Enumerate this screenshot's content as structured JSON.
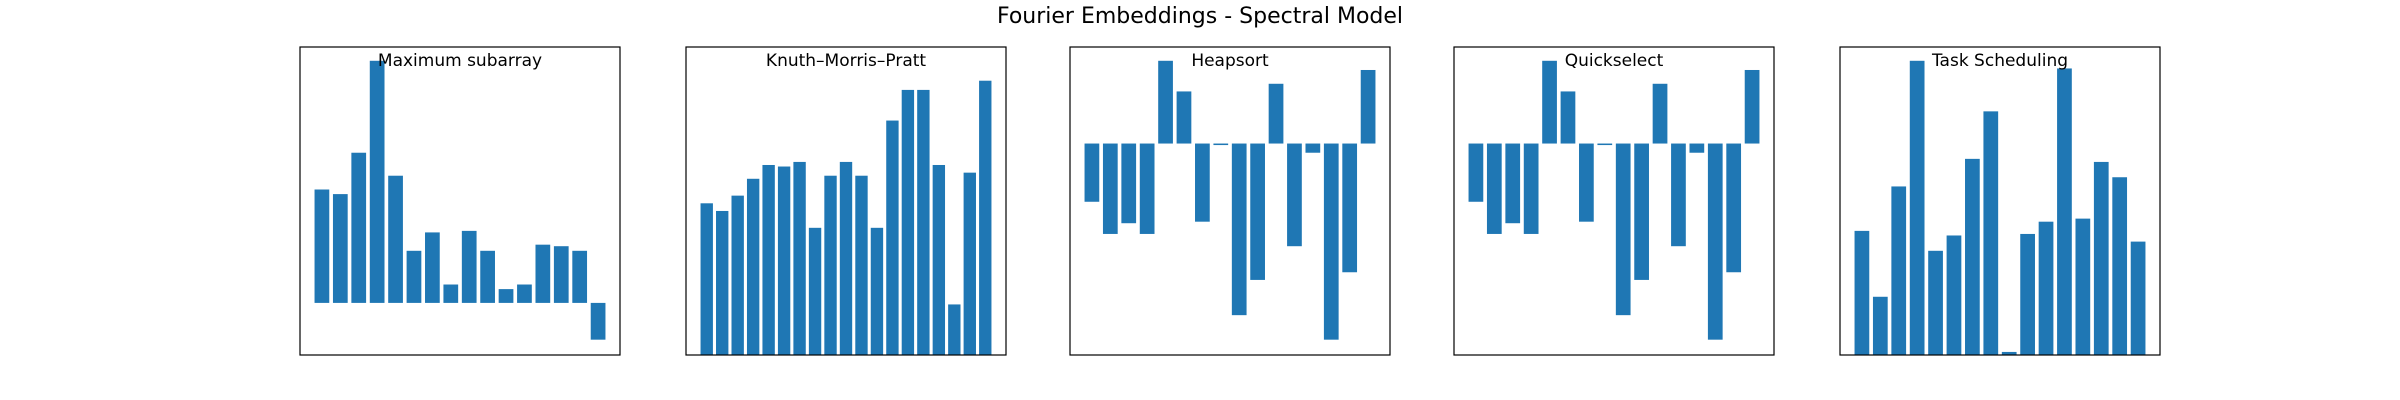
{
  "title": "Fourier Embeddings - Spectral Model",
  "chart_data": [
    {
      "type": "bar",
      "title": "Maximum subarray",
      "color": "#1f77b4",
      "ylim": [
        -34,
        167
      ],
      "values": [
        74,
        71,
        98,
        158,
        83,
        34,
        46,
        12,
        47,
        34,
        9,
        12,
        38,
        37,
        34,
        -24
      ]
    },
    {
      "type": "bar",
      "title": "Knuth–Morris–Pratt",
      "color": "#1f77b4",
      "ylim": [
        0,
        201
      ],
      "values": [
        99,
        94,
        104,
        115,
        124,
        123,
        126,
        83,
        117,
        126,
        117,
        83,
        153,
        173,
        173,
        124,
        33,
        119,
        179
      ]
    },
    {
      "type": "bar",
      "title": "Heapsort",
      "color": "#1f77b4",
      "ylim": [
        -138,
        63
      ],
      "values": [
        -38,
        -59,
        -52,
        -59,
        54,
        34,
        -51,
        -1,
        -112,
        -89,
        39,
        -67,
        -6,
        -128,
        -84,
        48
      ]
    },
    {
      "type": "bar",
      "title": "Quickselect",
      "color": "#1f77b4",
      "ylim": [
        -138,
        63
      ],
      "values": [
        -38,
        -59,
        -52,
        -59,
        54,
        34,
        -51,
        -1,
        -112,
        -89,
        39,
        -67,
        -6,
        -128,
        -84,
        48
      ]
    },
    {
      "type": "bar",
      "title": "Task Scheduling",
      "color": "#1f77b4",
      "ylim": [
        0,
        201
      ],
      "values": [
        81,
        38,
        110,
        192,
        68,
        78,
        128,
        159,
        2,
        79,
        87,
        187,
        89,
        126,
        116,
        74
      ]
    }
  ]
}
